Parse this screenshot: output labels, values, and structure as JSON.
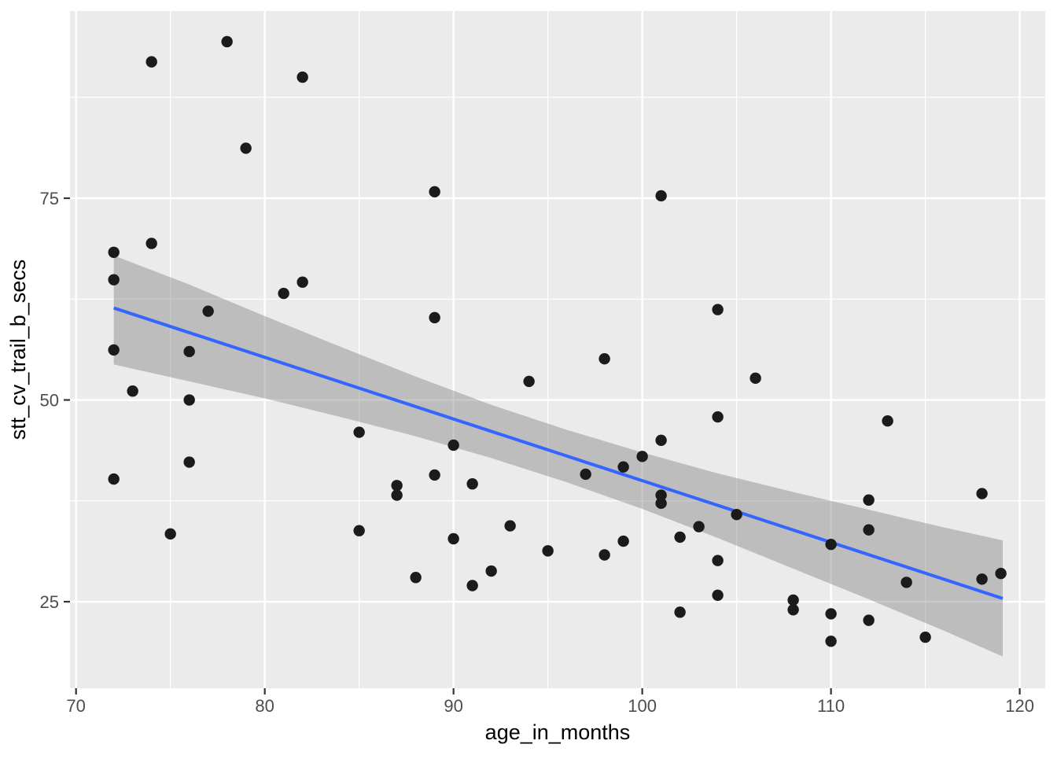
{
  "chart_data": {
    "type": "scatter",
    "title": "",
    "xlabel": "age_in_months",
    "ylabel": "stt_cv_trail_b_secs",
    "xlim": [
      69.68,
      121.35
    ],
    "ylim": [
      14.28,
      98.2
    ],
    "x_ticks": [
      70,
      80,
      90,
      100,
      110,
      120
    ],
    "y_ticks": [
      25,
      50,
      75
    ],
    "x_minor": [
      75,
      85,
      95,
      105,
      115
    ],
    "y_minor": [
      37.5,
      62.5,
      87.5
    ],
    "grid": true,
    "legend": null,
    "points": [
      [
        72,
        68.3
      ],
      [
        72,
        64.9
      ],
      [
        72,
        56.2
      ],
      [
        72,
        40.2
      ],
      [
        73,
        51.1
      ],
      [
        74,
        91.9
      ],
      [
        74,
        69.4
      ],
      [
        75,
        33.4
      ],
      [
        76,
        56.0
      ],
      [
        76,
        50.0
      ],
      [
        76,
        42.3
      ],
      [
        77,
        61.0
      ],
      [
        78,
        94.4
      ],
      [
        79,
        81.2
      ],
      [
        81,
        63.2
      ],
      [
        82,
        90.0
      ],
      [
        82,
        64.6
      ],
      [
        85,
        46.0
      ],
      [
        85,
        33.8
      ],
      [
        87,
        39.4
      ],
      [
        87,
        38.2
      ],
      [
        88,
        28.0
      ],
      [
        89,
        75.8
      ],
      [
        89,
        60.2
      ],
      [
        89,
        40.7
      ],
      [
        90,
        44.4
      ],
      [
        90,
        32.8
      ],
      [
        91,
        39.6
      ],
      [
        91,
        27.0
      ],
      [
        92,
        28.8
      ],
      [
        93,
        34.4
      ],
      [
        94,
        52.3
      ],
      [
        95,
        31.3
      ],
      [
        97,
        40.8
      ],
      [
        98,
        55.1
      ],
      [
        98,
        30.8
      ],
      [
        99,
        41.7
      ],
      [
        99,
        32.5
      ],
      [
        100,
        43.0
      ],
      [
        101,
        75.3
      ],
      [
        101,
        45.0
      ],
      [
        101,
        38.2
      ],
      [
        101,
        37.2
      ],
      [
        102,
        33.0
      ],
      [
        102,
        23.7
      ],
      [
        103,
        34.3
      ],
      [
        104,
        61.2
      ],
      [
        104,
        47.9
      ],
      [
        104,
        30.1
      ],
      [
        104,
        25.8
      ],
      [
        105,
        35.8
      ],
      [
        106,
        52.7
      ],
      [
        108,
        25.2
      ],
      [
        108,
        24.0
      ],
      [
        110,
        32.1
      ],
      [
        110,
        23.5
      ],
      [
        110,
        20.1
      ],
      [
        112,
        37.6
      ],
      [
        112,
        33.9
      ],
      [
        112,
        22.7
      ],
      [
        113,
        47.4
      ],
      [
        114,
        27.4
      ],
      [
        115,
        20.6
      ],
      [
        118,
        38.4
      ],
      [
        118,
        27.8
      ],
      [
        119,
        28.5
      ]
    ],
    "regression_line": {
      "x": [
        72,
        119.1
      ],
      "y": [
        61.4,
        25.4
      ]
    },
    "confidence_band": {
      "x": [
        72,
        76,
        80,
        84,
        88,
        92,
        96,
        100,
        104,
        108,
        112,
        116,
        119.1
      ],
      "upper": [
        67.9,
        64.3,
        60.4,
        56.6,
        52.9,
        49.4,
        46.3,
        43.5,
        40.9,
        38.6,
        36.4,
        34.2,
        32.6
      ],
      "lower": [
        54.4,
        52.3,
        50.2,
        47.9,
        45.5,
        42.8,
        39.8,
        36.5,
        32.9,
        29.1,
        25.3,
        21.4,
        18.2
      ]
    },
    "colors": {
      "panel_bg": "#EBEBEB",
      "grid": "#FFFFFF",
      "band_fill": "#7F7F7F",
      "band_opacity": 0.42,
      "line": "#3366FF",
      "point": "#1B1B1B",
      "tick_mark": "#333333",
      "tick_label": "#4D4D4D",
      "axis_title": "#000000"
    }
  }
}
